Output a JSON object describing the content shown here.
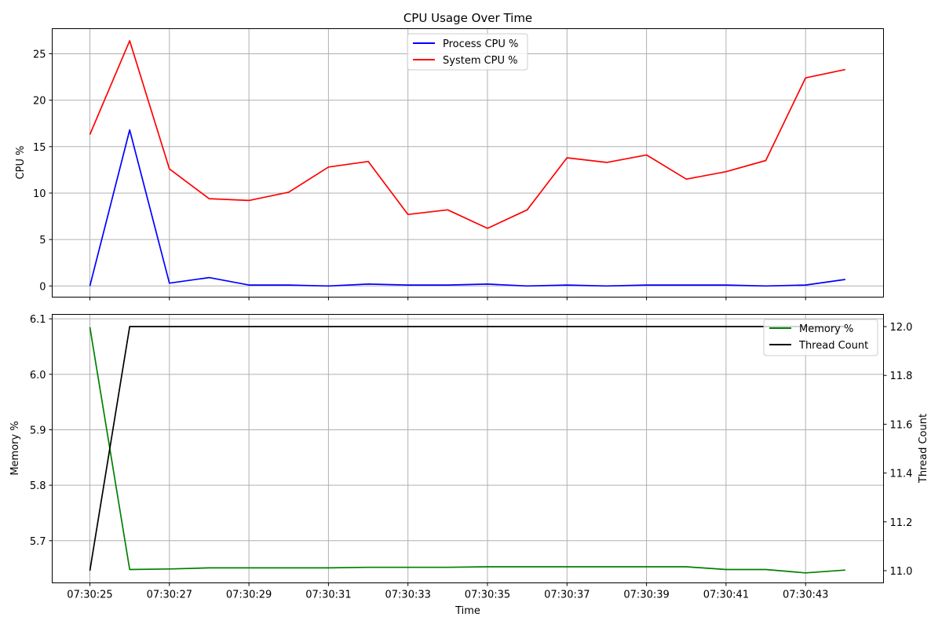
{
  "chart_data": [
    {
      "type": "line",
      "title": "CPU Usage Over Time",
      "xlabel": "",
      "ylabel": "CPU %",
      "ylim": [
        -1.2,
        27.7
      ],
      "yticks": [
        0,
        5,
        10,
        15,
        20,
        25
      ],
      "grid": true,
      "legend_position": "top-center",
      "x": [
        "07:30:25",
        "07:30:26",
        "07:30:27",
        "07:30:28",
        "07:30:29",
        "07:30:30",
        "07:30:31",
        "07:30:32",
        "07:30:33",
        "07:30:34",
        "07:30:35",
        "07:30:36",
        "07:30:37",
        "07:30:38",
        "07:30:39",
        "07:30:40",
        "07:30:41",
        "07:30:42",
        "07:30:43",
        "07:30:44"
      ],
      "series": [
        {
          "name": "Process CPU %",
          "color": "#0000ff",
          "values": [
            0.0,
            16.8,
            0.3,
            0.9,
            0.1,
            0.1,
            0.0,
            0.2,
            0.1,
            0.1,
            0.2,
            0.0,
            0.1,
            0.0,
            0.1,
            0.1,
            0.1,
            0.0,
            0.1,
            0.7
          ]
        },
        {
          "name": "System CPU %",
          "color": "#ff0000",
          "values": [
            16.3,
            26.4,
            12.6,
            9.4,
            9.2,
            10.1,
            12.8,
            13.4,
            7.7,
            8.2,
            6.2,
            8.2,
            13.8,
            13.3,
            14.1,
            11.5,
            12.3,
            13.5,
            22.4,
            23.3
          ]
        }
      ]
    },
    {
      "type": "line",
      "title": "",
      "xlabel": "Time",
      "ylabel": "Memory %",
      "y2label": "Thread Count",
      "ylim": [
        5.624,
        6.108
      ],
      "y2lim": [
        10.95,
        12.05
      ],
      "yticks": [
        "5.7",
        "5.8",
        "5.9",
        "6.0",
        "6.1"
      ],
      "y2ticks": [
        "11.0",
        "11.2",
        "11.4",
        "11.6",
        "11.8",
        "12.0"
      ],
      "xticks": [
        "07:30:25",
        "07:30:27",
        "07:30:29",
        "07:30:31",
        "07:30:33",
        "07:30:35",
        "07:30:37",
        "07:30:39",
        "07:30:41",
        "07:30:43"
      ],
      "grid": true,
      "legend_position": "top-right",
      "x": [
        "07:30:25",
        "07:30:26",
        "07:30:27",
        "07:30:28",
        "07:30:29",
        "07:30:30",
        "07:30:31",
        "07:30:32",
        "07:30:33",
        "07:30:34",
        "07:30:35",
        "07:30:36",
        "07:30:37",
        "07:30:38",
        "07:30:39",
        "07:30:40",
        "07:30:41",
        "07:30:42",
        "07:30:43",
        "07:30:44"
      ],
      "series": [
        {
          "name": "Memory %",
          "color": "#008000",
          "axis": "left",
          "values": [
            6.085,
            5.648,
            5.649,
            5.651,
            5.651,
            5.651,
            5.651,
            5.652,
            5.652,
            5.652,
            5.653,
            5.653,
            5.653,
            5.653,
            5.653,
            5.653,
            5.648,
            5.648,
            5.642,
            5.647
          ]
        },
        {
          "name": "Thread Count",
          "color": "#000000",
          "axis": "right",
          "values": [
            11,
            12,
            12,
            12,
            12,
            12,
            12,
            12,
            12,
            12,
            12,
            12,
            12,
            12,
            12,
            12,
            12,
            12,
            12,
            12
          ]
        }
      ]
    }
  ]
}
